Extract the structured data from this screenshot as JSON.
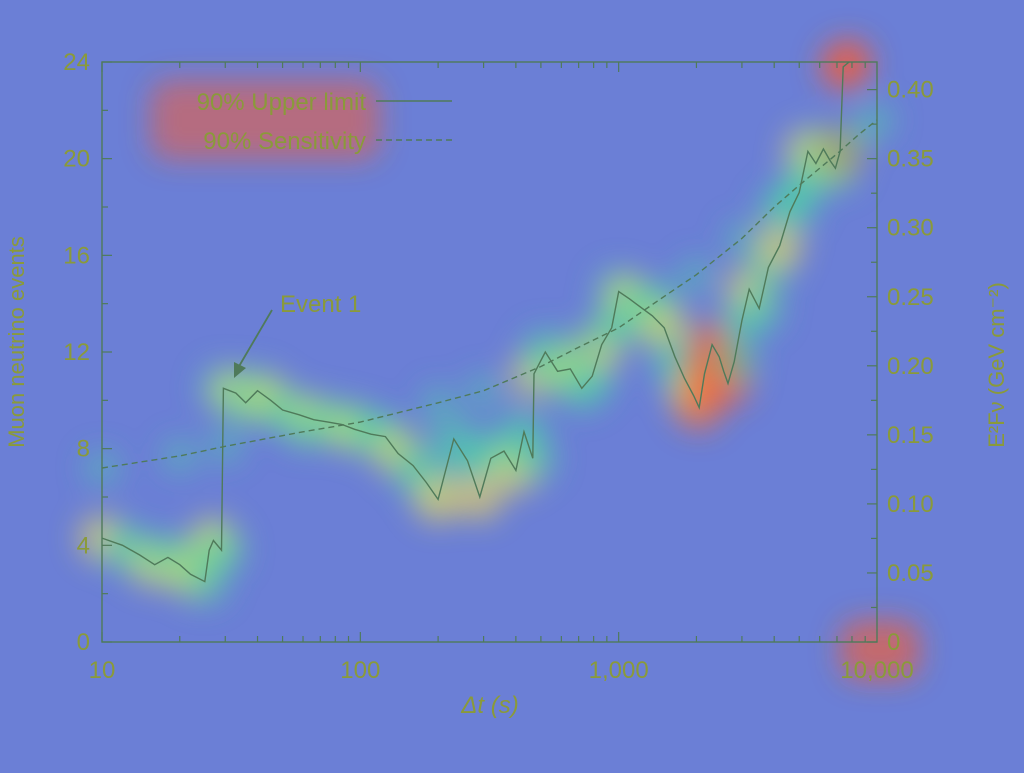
{
  "colors": {
    "background": "#6b7fd6",
    "heat_low": "#4fd1a6",
    "heat_mid": "#ffe14a",
    "heat_high": "#ff5a2a",
    "line": "#4f7a5a",
    "text": "#8a9a3a"
  },
  "chart_data": {
    "type": "line",
    "title": "",
    "xlabel": "Δt (s)",
    "ylabel_left": "Muon neutrino events",
    "ylabel_right": "E²Fν (GeV cm⁻²)",
    "xscale": "log",
    "xlim": [
      10,
      10000
    ],
    "ylim": [
      0,
      24
    ],
    "ylim_right": [
      0,
      0.42
    ],
    "x_ticks": [
      10,
      100,
      1000,
      10000
    ],
    "x_tick_labels": [
      "10",
      "100",
      "1,000",
      "10,000"
    ],
    "y_ticks": [
      0,
      4,
      8,
      12,
      16,
      20,
      24
    ],
    "y_tick_labels": [
      "0",
      "4",
      "8",
      "12",
      "16",
      "20",
      "24"
    ],
    "y2_ticks": [
      0,
      0.05,
      0.1,
      0.15,
      0.2,
      0.25,
      0.3,
      0.35,
      0.4
    ],
    "y2_tick_labels": [
      "0",
      "0.05",
      "0.10",
      "0.15",
      "0.20",
      "0.25",
      "0.30",
      "0.35",
      "0.40"
    ],
    "legend": {
      "placement": "top-left",
      "entries": [
        {
          "label": "90% Upper limit",
          "style": "solid"
        },
        {
          "label": "90% Sensitivity",
          "style": "dashed"
        }
      ]
    },
    "annotation": {
      "text": "Event 1",
      "x": 30,
      "y": 11
    },
    "series": [
      {
        "name": "90% Upper limit",
        "style": "solid",
        "points": [
          [
            10,
            4.3
          ],
          [
            12,
            4.0
          ],
          [
            14,
            3.6
          ],
          [
            16,
            3.2
          ],
          [
            18,
            3.5
          ],
          [
            20,
            3.2
          ],
          [
            22,
            2.8
          ],
          [
            25,
            2.5
          ],
          [
            26,
            3.8
          ],
          [
            27,
            4.2
          ],
          [
            29,
            3.8
          ],
          [
            29.5,
            10.5
          ],
          [
            33,
            10.3
          ],
          [
            36,
            9.9
          ],
          [
            40,
            10.4
          ],
          [
            45,
            10.0
          ],
          [
            50,
            9.6
          ],
          [
            58,
            9.4
          ],
          [
            66,
            9.2
          ],
          [
            75,
            9.1
          ],
          [
            85,
            9.0
          ],
          [
            95,
            8.8
          ],
          [
            110,
            8.6
          ],
          [
            125,
            8.5
          ],
          [
            140,
            7.8
          ],
          [
            160,
            7.3
          ],
          [
            180,
            6.6
          ],
          [
            200,
            5.9
          ],
          [
            230,
            8.4
          ],
          [
            260,
            7.5
          ],
          [
            290,
            6.0
          ],
          [
            320,
            7.6
          ],
          [
            360,
            7.9
          ],
          [
            400,
            7.1
          ],
          [
            430,
            8.7
          ],
          [
            465,
            7.6
          ],
          [
            470,
            11.1
          ],
          [
            520,
            12.0
          ],
          [
            580,
            11.2
          ],
          [
            650,
            11.3
          ],
          [
            720,
            10.5
          ],
          [
            790,
            11.0
          ],
          [
            860,
            12.3
          ],
          [
            940,
            13.0
          ],
          [
            1000,
            14.5
          ],
          [
            1100,
            14.2
          ],
          [
            1200,
            13.9
          ],
          [
            1350,
            13.5
          ],
          [
            1500,
            13.0
          ],
          [
            1650,
            11.8
          ],
          [
            1800,
            10.9
          ],
          [
            1950,
            10.2
          ],
          [
            2050,
            9.7
          ],
          [
            2150,
            11.1
          ],
          [
            2300,
            12.3
          ],
          [
            2450,
            11.8
          ],
          [
            2550,
            11.2
          ],
          [
            2650,
            10.7
          ],
          [
            2800,
            11.6
          ],
          [
            3000,
            13.3
          ],
          [
            3200,
            14.6
          ],
          [
            3500,
            13.8
          ],
          [
            3800,
            15.5
          ],
          [
            4200,
            16.4
          ],
          [
            4600,
            17.8
          ],
          [
            5000,
            18.6
          ],
          [
            5400,
            20.3
          ],
          [
            5800,
            19.8
          ],
          [
            6200,
            20.4
          ],
          [
            6600,
            19.9
          ],
          [
            6900,
            19.6
          ],
          [
            7200,
            20.3
          ],
          [
            7400,
            23.8
          ],
          [
            7800,
            24.0
          ]
        ]
      },
      {
        "name": "90% Sensitivity",
        "style": "dashed",
        "points": [
          [
            10,
            7.2
          ],
          [
            20,
            7.7
          ],
          [
            30,
            8.1
          ],
          [
            60,
            8.7
          ],
          [
            100,
            9.1
          ],
          [
            200,
            9.9
          ],
          [
            300,
            10.4
          ],
          [
            500,
            11.4
          ],
          [
            700,
            12.2
          ],
          [
            1000,
            13.0
          ],
          [
            1500,
            14.3
          ],
          [
            2000,
            15.2
          ],
          [
            3000,
            16.7
          ],
          [
            4000,
            18.0
          ],
          [
            5000,
            18.9
          ],
          [
            7000,
            20.2
          ],
          [
            8500,
            21.0
          ],
          [
            10000,
            21.6
          ]
        ]
      }
    ]
  }
}
